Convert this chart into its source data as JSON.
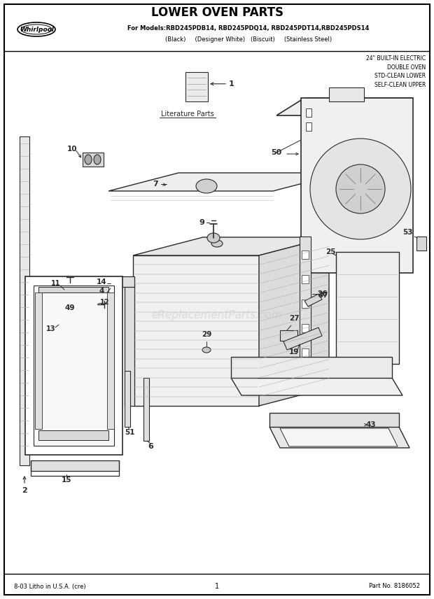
{
  "title": "LOWER OVEN PARTS",
  "models_line": "For Models:RBD245PDB14, RBD245PDQ14, RBD245PDT14,RBD245PDS14",
  "colors_line": "(Black)     (Designer White)   (Biscuit)     (Stainless Steel)",
  "top_right_text": "24\" BUILT-IN ELECTRIC\nDOUBLE OVEN\nSTD-CLEAN LOWER\nSELF-CLEAN UPPER",
  "watermark": "eReplacementParts.com",
  "footer_left": "8-03 Litho in U.S.A. (cre)",
  "footer_center": "1",
  "footer_right": "Part No. 8186052",
  "bg_color": "#ffffff",
  "border_color": "#000000",
  "text_color": "#000000",
  "diagram_color": "#2a2a2a",
  "watermark_color": "#c8c8c8"
}
